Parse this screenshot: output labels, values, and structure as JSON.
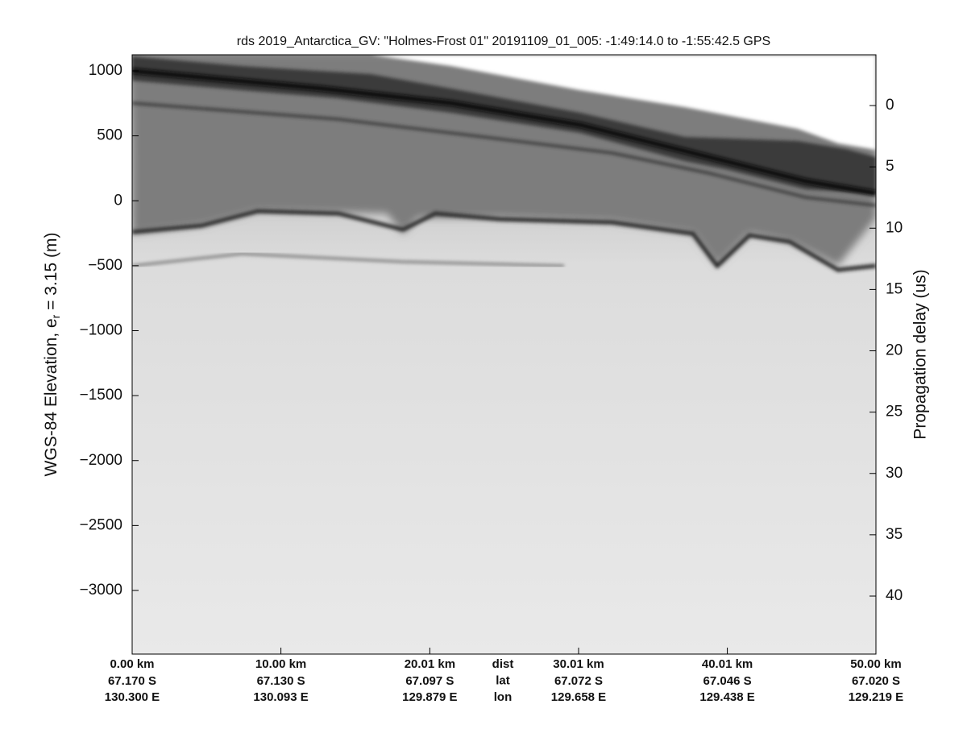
{
  "chart_data": {
    "type": "echogram",
    "title": "rds 2019_Antarctica_GV: \"Holmes-Frost 01\"  20191109_01_005: -1:49:14.0 to -1:55:42.5 GPS",
    "ylabel": {
      "text": "WGS-84 Elevation, e",
      "subscript": "r",
      "suffix": " = 3.15 (m)"
    },
    "y2label": "Propagation delay (us)",
    "ylim": [
      -3490,
      1124
    ],
    "yticks": [
      {
        "value": -3000,
        "label": "−3000"
      },
      {
        "value": -2500,
        "label": "−2500"
      },
      {
        "value": -2000,
        "label": "−2000"
      },
      {
        "value": -1500,
        "label": "−1500"
      },
      {
        "value": -1000,
        "label": "−1000"
      },
      {
        "value": -500,
        "label": "−500"
      },
      0,
      500,
      1000
    ],
    "y2lim": [
      -4.14,
      44.73
    ],
    "y2ticks": [
      0,
      5,
      10,
      15,
      20,
      25,
      30,
      35,
      40
    ],
    "xlim": [
      0,
      50
    ],
    "xticks": [
      {
        "value": 0,
        "label": "0.00 km"
      },
      {
        "value": 10,
        "label": "10.00 km"
      },
      {
        "value": 20.01,
        "label": "20.01 km"
      },
      {
        "value": 30.01,
        "label": "30.01 km"
      },
      {
        "value": 40.01,
        "label": "40.01 km"
      },
      {
        "value": 50,
        "label": "50.00 km"
      }
    ],
    "lat_labels": [
      "67.170 S",
      "67.130 S",
      "67.097 S",
      "67.072 S",
      "67.046 S",
      "67.020 S"
    ],
    "lon_labels": [
      "130.300 E",
      "130.093 E",
      "129.879 E",
      "129.658 E",
      "129.438 E",
      "129.219 E"
    ],
    "row_labels": [
      "dist",
      "lat",
      "lon"
    ]
  }
}
